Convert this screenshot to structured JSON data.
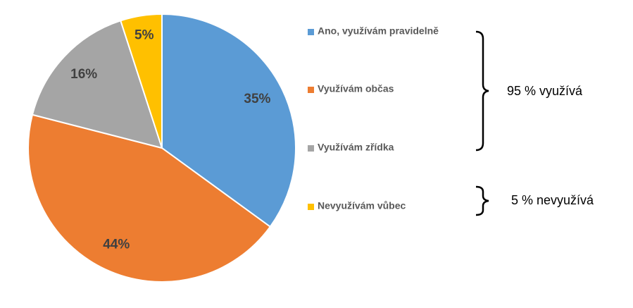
{
  "chart_data": {
    "type": "pie",
    "categories": [
      "Ano, využívám pravidelně",
      "Využívám občas",
      "Využívám zřídka",
      "Nevyužívám vůbec"
    ],
    "values": [
      35,
      44,
      16,
      5
    ],
    "value_labels": [
      "35%",
      "44%",
      "16%",
      "5%"
    ],
    "colors": [
      "#5b9bd5",
      "#ed7d31",
      "#a5a5a5",
      "#ffc000"
    ],
    "legend": "right",
    "annotations": [
      "95 % využívá",
      "5 % nevyužívá"
    ]
  }
}
